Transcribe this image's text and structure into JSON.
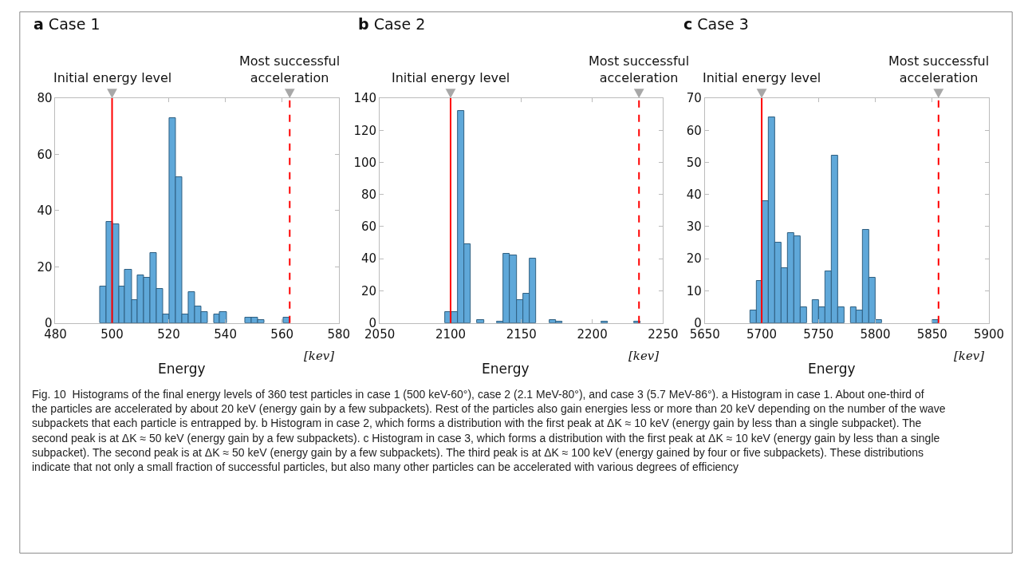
{
  "chart_data": [
    {
      "type": "histogram",
      "title": "a Case 1",
      "xlabel": "Energy",
      "color": "#5fa8d9",
      "bins": [
        495.7,
        497.9,
        500.2,
        502.4,
        504.6,
        506.9,
        509.1,
        511.3,
        513.6,
        515.8,
        518.0,
        520.3,
        522.5,
        524.7,
        527.0,
        529.2,
        531.4,
        533.7,
        535.9,
        538.1,
        540.4,
        542.6,
        544.8,
        547.1,
        549.3,
        551.5,
        553.8,
        556.0,
        558.2,
        560.5,
        562.7
      ],
      "values": [
        13,
        36,
        35,
        13,
        19,
        8,
        17,
        16,
        25,
        12,
        3,
        73,
        52,
        3,
        11,
        6,
        4,
        0,
        3,
        4,
        0,
        0,
        0,
        2,
        2,
        1,
        0,
        0,
        0,
        2
      ],
      "xlim": [
        480,
        580
      ],
      "xticks": [
        480,
        500,
        520,
        540,
        560,
        580
      ],
      "ylim": [
        0,
        80
      ],
      "yticks": [
        0,
        20,
        40,
        60,
        80
      ],
      "ref_lines": [
        {
          "axis": "x",
          "value": 500,
          "label": "Initial energy level",
          "color": "#ff0000",
          "line_style": "solid"
        },
        {
          "axis": "x",
          "value": 562.7,
          "label": "Most successful acceleration",
          "color": "#ff0000",
          "line_style": "dashed"
        }
      ],
      "annotations": [
        "[kev]",
        "Fig. 10  Histograms of the final energy levels of 360 test particles in case 1 (500 keV-60°), case 2 (2.1 MeV-80°), and case 3 (5.7 MeV-86°). a Histogram in case 1. About one-third of the particles are accelerated by about 20 keV (energy gain by a few subpackets). Rest of the particles also gain energies less or more than 20 keV depending on the number of the wave subpackets that each particle is entrapped by. b Histogram in case 2, which forms a distribution with the first peak at ΔK ≈ 10 keV (energy gain by less than a single subpacket). The second peak is at ΔK ≈ 50 keV (energy gain by a few subpackets). c Histogram in case 3, which forms a distribution with the first peak at ΔK ≈ 10 keV (energy gain by less than a single subpacket). The second peak is at ΔK ≈ 50 keV (energy gain by a few subpackets). The third peak is at ΔK ≈ 100 keV (energy gained by four or five subpackets). These distributions indicate that not only a small fraction of successful particles, but also many other particles can be accelerated with various degrees of efficiency"
      ]
    },
    {
      "type": "histogram",
      "title": "b Case 2",
      "xlabel": "Energy",
      "color": "#5fa8d9",
      "bins": [
        2095.9,
        2100.5,
        2105.1,
        2109.7,
        2114.3,
        2118.9,
        2123.6,
        2128.2,
        2132.8,
        2137.4,
        2142.0,
        2146.6,
        2151.2,
        2155.8,
        2160.4,
        2165.1,
        2169.7,
        2174.3,
        2178.9,
        2183.5,
        2188.1,
        2192.7,
        2197.3,
        2201.9,
        2206.5,
        2211.2,
        2215.8,
        2220.4,
        2225.0,
        2229.6,
        2234.2
      ],
      "values": [
        7,
        7,
        132,
        49,
        0,
        2,
        0,
        0,
        1,
        43,
        42,
        14,
        18,
        40,
        0,
        0,
        2,
        1,
        0,
        0,
        0,
        0,
        0,
        0,
        1,
        0,
        0,
        0,
        0,
        1
      ],
      "xlim": [
        2050,
        2250
      ],
      "xticks": [
        2050,
        2100,
        2150,
        2200,
        2250
      ],
      "ylim": [
        0,
        140
      ],
      "yticks": [
        0,
        20,
        40,
        60,
        80,
        100,
        120,
        140
      ],
      "ref_lines": [
        {
          "axis": "x",
          "value": 2100,
          "label": "Initial energy level",
          "color": "#ff0000",
          "line_style": "solid"
        },
        {
          "axis": "x",
          "value": 2233,
          "label": "Most successful acceleration",
          "color": "#ff0000",
          "line_style": "dashed"
        }
      ],
      "annotations": [
        "[kev]"
      ]
    },
    {
      "type": "histogram",
      "title": "c Case 3",
      "xlabel": "Energy",
      "color": "#5fa8d9",
      "bins": [
        5689.8,
        5695.3,
        5700.8,
        5706.4,
        5711.9,
        5717.4,
        5722.9,
        5728.4,
        5734.0,
        5739.5,
        5745.0,
        5750.5,
        5756.0,
        5761.6,
        5767.1,
        5772.6,
        5778.1,
        5783.6,
        5789.2,
        5794.7,
        5800.2,
        5805.7,
        5811.2,
        5816.8,
        5822.3,
        5827.8,
        5833.3,
        5838.8,
        5844.4,
        5849.9,
        5855.4
      ],
      "values": [
        4,
        13,
        38,
        64,
        25,
        17,
        28,
        27,
        5,
        0,
        7,
        5,
        16,
        52,
        5,
        0,
        5,
        4,
        29,
        14,
        1,
        0,
        0,
        0,
        0,
        0,
        0,
        0,
        0,
        1
      ],
      "xlim": [
        5650,
        5900
      ],
      "xticks": [
        5650,
        5700,
        5750,
        5800,
        5850,
        5900
      ],
      "ylim": [
        0,
        70
      ],
      "yticks": [
        0,
        10,
        20,
        30,
        40,
        50,
        60,
        70
      ],
      "ref_lines": [
        {
          "axis": "x",
          "value": 5700,
          "label": "Initial energy level",
          "color": "#ff0000",
          "line_style": "solid"
        },
        {
          "axis": "x",
          "value": 5855.6,
          "label": "Most successful acceleration",
          "color": "#ff0000",
          "line_style": "dashed"
        }
      ],
      "annotations": [
        "[kev]"
      ]
    }
  ]
}
